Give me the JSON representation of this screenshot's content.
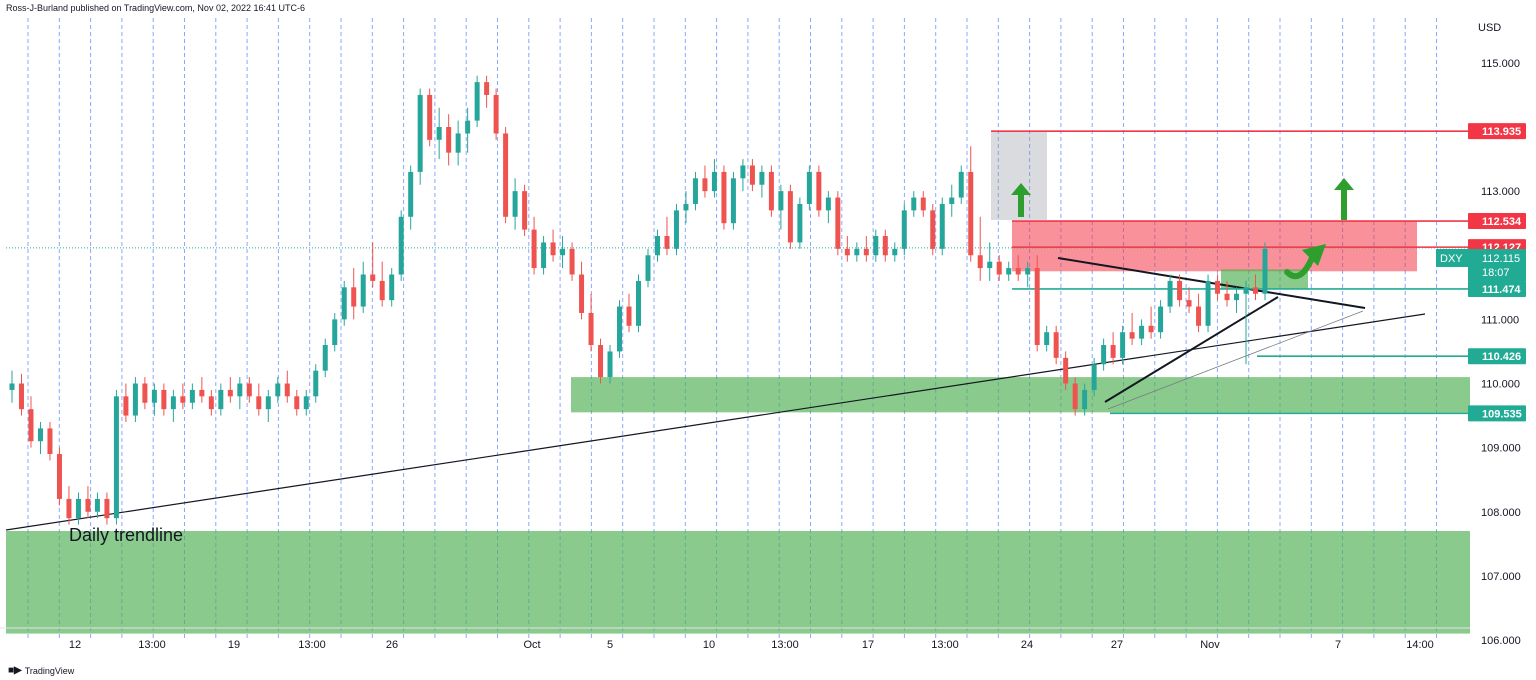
{
  "header": {
    "publisher": "Ross-J-Burland published on TradingView.com, Nov 02, 2022 16:41 UTC-6"
  },
  "footer": {
    "brand": "TradingView",
    "brand_icon": "tradingview-logo-icon"
  },
  "chart_data": {
    "type": "candlestick",
    "symbol": "DXY",
    "currency": "USD",
    "price_axis": {
      "min": 106.0,
      "max": 115.7,
      "ticks": [
        106.0,
        107.0,
        108.0,
        109.0,
        110.0,
        111.0,
        112.0,
        113.0,
        114.0,
        115.0
      ]
    },
    "price_tick_labels": [
      "106.000",
      "107.000",
      "108.000",
      "109.000",
      "110.000",
      "111.000",
      "112.000",
      "113.000",
      "114.000",
      "115.000"
    ],
    "time_axis": [
      "12",
      "13:00",
      "19",
      "13:00",
      "26",
      "Oct",
      "5",
      "10",
      "13:00",
      "17",
      "13:00",
      "24",
      "27",
      "Nov",
      "7",
      "14:00"
    ],
    "current_price": {
      "symbol": "DXY",
      "value": "112.115",
      "countdown": "18:07"
    },
    "levels": [
      {
        "value": 113.935,
        "label": "113.935",
        "color": "#f23645"
      },
      {
        "value": 112.534,
        "label": "112.534",
        "color": "#f23645"
      },
      {
        "value": 112.127,
        "label": "112.127",
        "color": "#f23645"
      },
      {
        "value": 111.474,
        "label": "111.474",
        "color": "#22ab94"
      },
      {
        "value": 110.426,
        "label": "110.426",
        "color": "#22ab94"
      },
      {
        "value": 109.535,
        "label": "109.535",
        "color": "#22ab94"
      }
    ],
    "zones": [
      {
        "name": "support-zone-daily",
        "from": 106.1,
        "to": 107.7,
        "color": "#4caf50"
      },
      {
        "name": "support-zone-110",
        "from": 109.55,
        "to": 110.1,
        "color": "#4caf50"
      },
      {
        "name": "resistance-zone",
        "from": 111.75,
        "to": 112.53,
        "color": "#f23645"
      },
      {
        "name": "small-support-zone",
        "from": 111.47,
        "to": 111.78,
        "color": "#4caf50"
      },
      {
        "name": "breakout-box",
        "from": 112.55,
        "to": 113.93,
        "color": "#9598a1"
      }
    ],
    "annotations": [
      {
        "text": "Daily trendline"
      }
    ],
    "candles": [
      [
        109.9,
        110.2,
        109.7,
        110.0
      ],
      [
        110.0,
        110.15,
        109.5,
        109.6
      ],
      [
        109.6,
        109.8,
        109.0,
        109.1
      ],
      [
        109.1,
        109.4,
        108.9,
        109.3
      ],
      [
        109.3,
        109.4,
        108.8,
        108.9
      ],
      [
        108.9,
        109.0,
        108.1,
        108.2
      ],
      [
        108.2,
        108.4,
        107.8,
        107.9
      ],
      [
        107.9,
        108.3,
        107.8,
        108.2
      ],
      [
        108.2,
        108.4,
        107.9,
        108.0
      ],
      [
        108.0,
        108.3,
        107.9,
        108.2
      ],
      [
        108.2,
        108.3,
        107.8,
        107.9
      ],
      [
        107.9,
        109.9,
        107.8,
        109.8
      ],
      [
        109.8,
        110.0,
        109.4,
        109.5
      ],
      [
        109.5,
        110.1,
        109.4,
        110.0
      ],
      [
        110.0,
        110.1,
        109.6,
        109.7
      ],
      [
        109.7,
        110.0,
        109.5,
        109.9
      ],
      [
        109.9,
        110.0,
        109.5,
        109.6
      ],
      [
        109.6,
        109.9,
        109.4,
        109.8
      ],
      [
        109.8,
        110.0,
        109.6,
        109.7
      ],
      [
        109.7,
        110.0,
        109.6,
        109.9
      ],
      [
        109.9,
        110.1,
        109.7,
        109.8
      ],
      [
        109.8,
        109.9,
        109.5,
        109.6
      ],
      [
        109.6,
        110.0,
        109.5,
        109.9
      ],
      [
        109.9,
        110.1,
        109.7,
        109.8
      ],
      [
        109.8,
        110.1,
        109.6,
        110.0
      ],
      [
        110.0,
        110.1,
        109.7,
        109.8
      ],
      [
        109.8,
        110.0,
        109.5,
        109.6
      ],
      [
        109.6,
        109.9,
        109.4,
        109.8
      ],
      [
        109.8,
        110.1,
        109.7,
        110.0
      ],
      [
        110.0,
        110.2,
        109.7,
        109.8
      ],
      [
        109.8,
        109.9,
        109.5,
        109.6
      ],
      [
        109.6,
        109.9,
        109.5,
        109.8
      ],
      [
        109.8,
        110.3,
        109.7,
        110.2
      ],
      [
        110.2,
        110.7,
        110.1,
        110.6
      ],
      [
        110.6,
        111.1,
        110.5,
        111.0
      ],
      [
        111.0,
        111.6,
        110.9,
        111.5
      ],
      [
        111.5,
        111.8,
        111.0,
        111.2
      ],
      [
        111.2,
        111.9,
        111.1,
        111.7
      ],
      [
        111.7,
        112.2,
        111.5,
        111.6
      ],
      [
        111.6,
        111.9,
        111.2,
        111.3
      ],
      [
        111.3,
        111.8,
        111.2,
        111.7
      ],
      [
        111.7,
        112.7,
        111.6,
        112.6
      ],
      [
        112.6,
        113.4,
        112.4,
        113.3
      ],
      [
        113.3,
        114.6,
        113.1,
        114.5
      ],
      [
        114.5,
        114.6,
        113.7,
        113.8
      ],
      [
        113.8,
        114.3,
        113.5,
        114.0
      ],
      [
        114.0,
        114.2,
        113.4,
        113.6
      ],
      [
        113.6,
        114.1,
        113.4,
        113.9
      ],
      [
        113.9,
        114.3,
        113.6,
        114.1
      ],
      [
        114.1,
        114.8,
        114.0,
        114.7
      ],
      [
        114.7,
        114.8,
        114.3,
        114.5
      ],
      [
        114.5,
        114.6,
        113.8,
        113.9
      ],
      [
        113.9,
        114.0,
        112.5,
        112.6
      ],
      [
        112.6,
        113.2,
        112.4,
        113.0
      ],
      [
        113.0,
        113.1,
        112.3,
        112.4
      ],
      [
        112.4,
        112.6,
        111.7,
        111.8
      ],
      [
        111.8,
        112.3,
        111.7,
        112.2
      ],
      [
        112.2,
        112.4,
        111.9,
        112.0
      ],
      [
        112.0,
        112.3,
        111.8,
        112.1
      ],
      [
        112.1,
        112.2,
        111.6,
        111.7
      ],
      [
        111.7,
        111.9,
        111.0,
        111.1
      ],
      [
        111.1,
        111.4,
        110.5,
        110.6
      ],
      [
        110.6,
        110.7,
        110.0,
        110.1
      ],
      [
        110.1,
        110.6,
        110.0,
        110.5
      ],
      [
        110.5,
        111.3,
        110.4,
        111.2
      ],
      [
        111.2,
        111.4,
        110.8,
        110.9
      ],
      [
        110.9,
        111.7,
        110.8,
        111.6
      ],
      [
        111.6,
        112.1,
        111.5,
        112.0
      ],
      [
        112.0,
        112.4,
        111.9,
        112.3
      ],
      [
        112.3,
        112.6,
        112.0,
        112.1
      ],
      [
        112.1,
        112.8,
        112.0,
        112.7
      ],
      [
        112.7,
        113.0,
        112.5,
        112.8
      ],
      [
        112.8,
        113.3,
        112.7,
        113.2
      ],
      [
        113.2,
        113.4,
        112.9,
        113.0
      ],
      [
        113.0,
        113.5,
        112.9,
        113.3
      ],
      [
        113.3,
        113.4,
        112.4,
        112.5
      ],
      [
        112.5,
        113.3,
        112.4,
        113.2
      ],
      [
        113.2,
        113.5,
        113.0,
        113.4
      ],
      [
        113.4,
        113.5,
        113.0,
        113.1
      ],
      [
        113.1,
        113.4,
        112.9,
        113.3
      ],
      [
        113.3,
        113.4,
        112.6,
        112.7
      ],
      [
        112.7,
        113.1,
        112.4,
        113.0
      ],
      [
        113.0,
        113.1,
        112.1,
        112.2
      ],
      [
        112.2,
        112.9,
        112.1,
        112.8
      ],
      [
        112.8,
        113.4,
        112.7,
        113.3
      ],
      [
        113.3,
        113.4,
        112.6,
        112.7
      ],
      [
        112.7,
        113.0,
        112.5,
        112.9
      ],
      [
        112.9,
        113.0,
        112.0,
        112.1
      ],
      [
        112.1,
        112.3,
        111.9,
        112.0
      ],
      [
        112.0,
        112.2,
        111.9,
        112.1
      ],
      [
        112.1,
        112.3,
        111.9,
        112.0
      ],
      [
        112.0,
        112.4,
        111.9,
        112.3
      ],
      [
        112.3,
        112.4,
        111.9,
        112.0
      ],
      [
        112.0,
        112.2,
        111.9,
        112.1
      ],
      [
        112.1,
        112.8,
        112.0,
        112.7
      ],
      [
        112.7,
        113.0,
        112.6,
        112.9
      ],
      [
        112.9,
        113.0,
        112.6,
        112.7
      ],
      [
        112.7,
        112.8,
        112.0,
        112.1
      ],
      [
        112.1,
        112.9,
        112.0,
        112.8
      ],
      [
        112.8,
        113.1,
        112.6,
        112.9
      ],
      [
        112.9,
        113.4,
        112.8,
        113.3
      ],
      [
        113.3,
        113.7,
        111.9,
        112.0
      ],
      [
        112.0,
        112.6,
        111.6,
        111.8
      ],
      [
        111.8,
        112.2,
        111.6,
        111.9
      ],
      [
        111.9,
        112.0,
        111.6,
        111.7
      ],
      [
        111.7,
        111.9,
        111.6,
        111.8
      ],
      [
        111.8,
        112.0,
        111.6,
        111.7
      ],
      [
        111.7,
        111.9,
        111.5,
        111.8
      ],
      [
        111.8,
        112.0,
        110.5,
        110.6
      ],
      [
        110.6,
        110.9,
        110.5,
        110.8
      ],
      [
        110.8,
        110.9,
        110.3,
        110.4
      ],
      [
        110.4,
        110.5,
        109.9,
        110.0
      ],
      [
        110.0,
        110.1,
        109.5,
        109.6
      ],
      [
        109.6,
        110.0,
        109.5,
        109.9
      ],
      [
        109.9,
        110.4,
        109.8,
        110.3
      ],
      [
        110.3,
        110.7,
        110.2,
        110.6
      ],
      [
        110.6,
        110.8,
        110.3,
        110.4
      ],
      [
        110.4,
        110.9,
        110.3,
        110.8
      ],
      [
        110.8,
        111.1,
        110.6,
        110.7
      ],
      [
        110.7,
        111.0,
        110.6,
        110.9
      ],
      [
        110.9,
        111.2,
        110.7,
        110.8
      ],
      [
        110.8,
        111.3,
        110.7,
        111.2
      ],
      [
        111.2,
        111.7,
        111.1,
        111.6
      ],
      [
        111.6,
        111.7,
        111.2,
        111.3
      ],
      [
        111.3,
        111.5,
        111.1,
        111.2
      ],
      [
        111.2,
        111.4,
        110.8,
        110.9
      ],
      [
        110.9,
        111.7,
        110.8,
        111.6
      ],
      [
        111.6,
        111.7,
        111.3,
        111.4
      ],
      [
        111.4,
        111.6,
        111.2,
        111.3
      ],
      [
        111.3,
        111.5,
        111.1,
        111.4
      ],
      [
        111.4,
        111.6,
        110.3,
        111.5
      ],
      [
        111.5,
        111.7,
        111.3,
        111.4
      ],
      [
        111.4,
        112.2,
        111.3,
        112.1
      ]
    ]
  }
}
